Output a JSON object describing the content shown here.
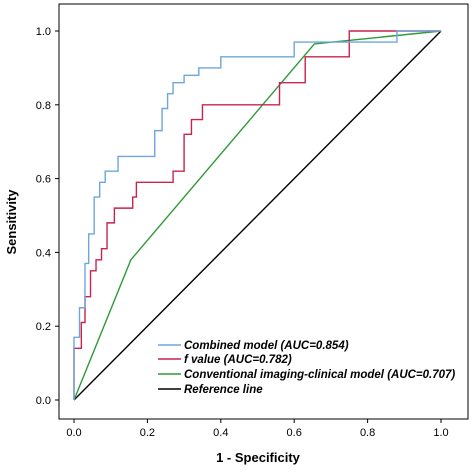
{
  "chart_data": {
    "type": "line",
    "xlabel": "1 - Specificity",
    "ylabel": "Sensitivity",
    "xlim": [
      0,
      1
    ],
    "ylim": [
      0,
      1
    ],
    "x_ticks": [
      "0.0",
      "0.2",
      "0.4",
      "0.6",
      "0.8",
      "1.0"
    ],
    "y_ticks": [
      "0.0",
      "0.2",
      "0.4",
      "0.6",
      "0.8",
      "1.0"
    ],
    "grid": false,
    "legend_position": "bottom-left",
    "series": [
      {
        "name": "Combined model (AUC=0.854)",
        "color": "#6ea6de",
        "x": [
          0,
          0,
          0.015,
          0.015,
          0.03,
          0.03,
          0.04,
          0.04,
          0.055,
          0.055,
          0.07,
          0.07,
          0.085,
          0.085,
          0.12,
          0.12,
          0.22,
          0.22,
          0.24,
          0.24,
          0.255,
          0.255,
          0.27,
          0.27,
          0.3,
          0.3,
          0.34,
          0.34,
          0.4,
          0.4,
          0.6,
          0.6,
          0.75,
          0.75,
          0.88,
          0.88,
          1.0
        ],
        "y": [
          0,
          0.17,
          0.17,
          0.25,
          0.25,
          0.37,
          0.37,
          0.45,
          0.45,
          0.55,
          0.55,
          0.59,
          0.59,
          0.62,
          0.62,
          0.66,
          0.66,
          0.73,
          0.73,
          0.79,
          0.79,
          0.83,
          0.83,
          0.86,
          0.86,
          0.88,
          0.88,
          0.9,
          0.9,
          0.93,
          0.93,
          0.97,
          0.97,
          0.97,
          0.97,
          1.0,
          1.0
        ]
      },
      {
        "name": "f value (AUC=0.782)",
        "color": "#c8244c",
        "x": [
          0,
          0,
          0.02,
          0.02,
          0.03,
          0.03,
          0.045,
          0.045,
          0.06,
          0.06,
          0.075,
          0.075,
          0.09,
          0.09,
          0.11,
          0.11,
          0.16,
          0.16,
          0.17,
          0.17,
          0.27,
          0.27,
          0.3,
          0.3,
          0.32,
          0.32,
          0.35,
          0.35,
          0.56,
          0.56,
          0.63,
          0.63,
          0.75,
          0.75,
          1.0
        ],
        "y": [
          0,
          0.14,
          0.14,
          0.21,
          0.21,
          0.28,
          0.28,
          0.35,
          0.35,
          0.38,
          0.38,
          0.41,
          0.41,
          0.48,
          0.48,
          0.52,
          0.52,
          0.55,
          0.55,
          0.59,
          0.59,
          0.62,
          0.62,
          0.72,
          0.72,
          0.76,
          0.76,
          0.8,
          0.8,
          0.86,
          0.86,
          0.93,
          0.93,
          1.0,
          1.0
        ]
      },
      {
        "name": "Conventional imaging-clinical model (AUC=0.707)",
        "color": "#2e9a3a",
        "x": [
          0,
          0.155,
          0.655,
          1.0
        ],
        "y": [
          0,
          0.38,
          0.965,
          1.0
        ]
      },
      {
        "name": "Reference line",
        "color": "#000000",
        "x": [
          0,
          1
        ],
        "y": [
          0,
          1
        ]
      }
    ]
  }
}
